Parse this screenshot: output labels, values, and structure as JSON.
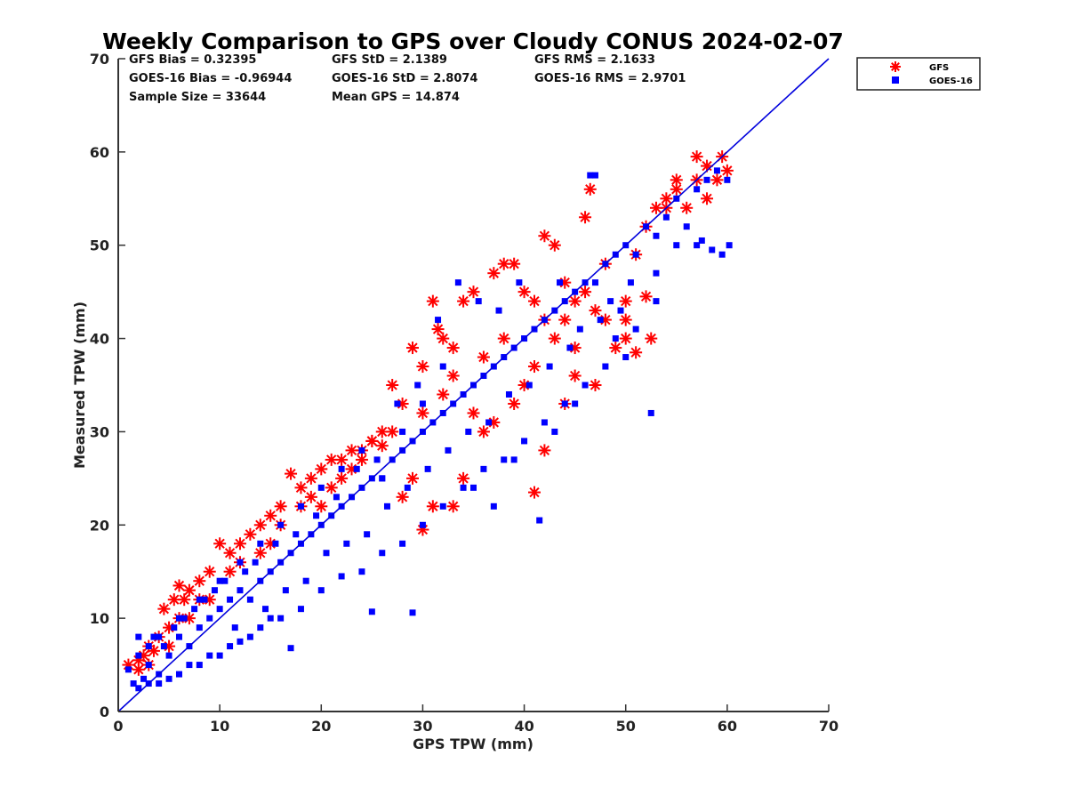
{
  "chart_data": {
    "type": "scatter",
    "title": "Weekly Comparison to GPS over Cloudy CONUS 2024-02-07",
    "xlabel": "GPS TPW (mm)",
    "ylabel": "Measured TPW (mm)",
    "xlim": [
      0,
      70
    ],
    "ylim": [
      0,
      70
    ],
    "x_ticks": [
      "0",
      "10",
      "20",
      "30",
      "40",
      "50",
      "60",
      "70"
    ],
    "y_ticks": [
      "0",
      "10",
      "20",
      "30",
      "40",
      "50",
      "60",
      "70"
    ],
    "grid": false,
    "legend_position": "outside top-right",
    "stats": [
      [
        "GFS Bias = 0.32395",
        "GFS StD = 2.1389",
        "GFS RMS = 2.1633"
      ],
      [
        "GOES-16 Bias = -0.96944",
        "GOES-16 StD = 2.8074",
        "GOES-16 RMS = 2.9701"
      ],
      [
        "Sample Size = 33644",
        "Mean GPS = 14.874"
      ]
    ],
    "reference_line": {
      "from": [
        0,
        0
      ],
      "to": [
        70,
        70
      ],
      "color": "#0000dd"
    },
    "series": [
      {
        "name": "GFS",
        "marker": "asterisk",
        "color": "#ff0000",
        "points": [
          [
            1,
            5
          ],
          [
            2,
            4.5
          ],
          [
            2.5,
            6
          ],
          [
            3,
            7
          ],
          [
            3.5,
            6.5
          ],
          [
            4,
            8
          ],
          [
            4.5,
            11
          ],
          [
            5,
            9
          ],
          [
            5.5,
            12
          ],
          [
            6,
            13.5
          ],
          [
            6.5,
            12
          ],
          [
            7,
            13
          ],
          [
            8,
            14
          ],
          [
            9,
            15
          ],
          [
            10,
            18
          ],
          [
            11,
            17
          ],
          [
            12,
            18
          ],
          [
            13,
            19
          ],
          [
            14,
            20
          ],
          [
            15,
            21
          ],
          [
            16,
            22
          ],
          [
            17,
            25.5
          ],
          [
            18,
            24
          ],
          [
            19,
            25
          ],
          [
            20,
            26
          ],
          [
            21,
            27
          ],
          [
            22,
            27
          ],
          [
            23,
            28
          ],
          [
            24,
            28
          ],
          [
            25,
            29
          ],
          [
            26,
            28.5
          ],
          [
            27,
            35
          ],
          [
            28,
            33
          ],
          [
            29,
            39
          ],
          [
            30,
            37
          ],
          [
            31,
            44
          ],
          [
            31.5,
            41
          ],
          [
            32,
            40
          ],
          [
            33,
            39
          ],
          [
            34,
            44
          ],
          [
            35,
            45
          ],
          [
            36,
            38
          ],
          [
            37,
            47
          ],
          [
            38,
            48
          ],
          [
            39,
            48
          ],
          [
            40,
            45
          ],
          [
            41,
            44
          ],
          [
            42,
            51
          ],
          [
            43,
            50
          ],
          [
            44,
            46
          ],
          [
            45,
            44
          ],
          [
            46,
            53
          ],
          [
            46.5,
            56
          ],
          [
            47,
            35
          ],
          [
            48,
            48
          ],
          [
            49,
            39
          ],
          [
            50,
            42
          ],
          [
            51,
            38.5
          ],
          [
            52,
            44.5
          ],
          [
            52.5,
            40
          ],
          [
            53,
            54
          ],
          [
            54,
            55
          ],
          [
            55,
            57
          ],
          [
            56,
            54
          ],
          [
            57,
            59.5
          ],
          [
            58,
            55
          ],
          [
            59,
            57
          ],
          [
            59.5,
            59.5
          ],
          [
            60,
            58
          ],
          [
            30,
            19.5
          ],
          [
            31,
            22
          ],
          [
            33,
            22
          ],
          [
            34,
            25
          ],
          [
            41,
            23.5
          ],
          [
            42,
            28
          ],
          [
            44,
            33
          ],
          [
            45,
            36
          ],
          [
            38,
            40
          ],
          [
            36,
            30
          ],
          [
            35,
            32
          ],
          [
            28,
            23
          ],
          [
            29,
            25
          ],
          [
            26,
            30
          ],
          [
            25,
            29
          ],
          [
            24,
            27
          ],
          [
            22,
            25
          ],
          [
            21,
            24
          ],
          [
            20,
            22
          ],
          [
            19,
            23
          ],
          [
            15,
            18
          ],
          [
            12,
            16
          ],
          [
            8,
            12
          ],
          [
            7,
            10
          ],
          [
            40,
            35
          ],
          [
            43,
            40
          ],
          [
            44,
            42
          ],
          [
            47,
            43
          ],
          [
            48,
            42
          ],
          [
            50,
            44
          ],
          [
            51,
            49
          ],
          [
            52,
            52
          ],
          [
            55,
            56
          ],
          [
            54,
            54
          ],
          [
            57,
            57
          ],
          [
            58,
            58.5
          ],
          [
            50,
            40
          ],
          [
            45,
            39
          ],
          [
            33,
            36
          ],
          [
            32,
            34
          ],
          [
            37,
            31
          ],
          [
            39,
            33
          ],
          [
            41,
            37
          ],
          [
            42,
            42
          ],
          [
            46,
            45
          ],
          [
            30,
            32
          ],
          [
            27,
            30
          ],
          [
            23,
            26
          ],
          [
            18,
            22
          ],
          [
            16,
            20
          ],
          [
            14,
            17
          ],
          [
            11,
            15
          ],
          [
            9,
            12
          ],
          [
            6,
            10
          ],
          [
            5,
            7
          ],
          [
            3,
            5
          ],
          [
            2,
            5.5
          ]
        ]
      },
      {
        "name": "GOES-16",
        "marker": "square",
        "color": "#0000ff",
        "points": [
          [
            1,
            4.5
          ],
          [
            1.5,
            3
          ],
          [
            2,
            6
          ],
          [
            2.5,
            3.5
          ],
          [
            3,
            5
          ],
          [
            3.5,
            8
          ],
          [
            4,
            4
          ],
          [
            4.5,
            7
          ],
          [
            5,
            6
          ],
          [
            5.5,
            9
          ],
          [
            6,
            8
          ],
          [
            6.5,
            10
          ],
          [
            7,
            7
          ],
          [
            7.5,
            11
          ],
          [
            8,
            9
          ],
          [
            8.5,
            12
          ],
          [
            9,
            10
          ],
          [
            9.5,
            13
          ],
          [
            10,
            11
          ],
          [
            10.5,
            14
          ],
          [
            11,
            12
          ],
          [
            11.5,
            9
          ],
          [
            12,
            13
          ],
          [
            12.5,
            15
          ],
          [
            13,
            12
          ],
          [
            13.5,
            16
          ],
          [
            14,
            14
          ],
          [
            14.5,
            11
          ],
          [
            15,
            15
          ],
          [
            15.5,
            18
          ],
          [
            16,
            16
          ],
          [
            16.5,
            13
          ],
          [
            17,
            17
          ],
          [
            17.5,
            19
          ],
          [
            18,
            18
          ],
          [
            18.5,
            14
          ],
          [
            19,
            19
          ],
          [
            19.5,
            21
          ],
          [
            20,
            20
          ],
          [
            20.5,
            17
          ],
          [
            21,
            21
          ],
          [
            21.5,
            23
          ],
          [
            22,
            22
          ],
          [
            22.5,
            18
          ],
          [
            23,
            23
          ],
          [
            23.5,
            26
          ],
          [
            24,
            24
          ],
          [
            24.5,
            19
          ],
          [
            25,
            25
          ],
          [
            25.5,
            27
          ],
          [
            26,
            25
          ],
          [
            26.5,
            22
          ],
          [
            27,
            27
          ],
          [
            27.5,
            33
          ],
          [
            28,
            28
          ],
          [
            28.5,
            24
          ],
          [
            29,
            29
          ],
          [
            29.5,
            35
          ],
          [
            30,
            30
          ],
          [
            30.5,
            26
          ],
          [
            31,
            31
          ],
          [
            31.5,
            42
          ],
          [
            32,
            32
          ],
          [
            32.5,
            28
          ],
          [
            33,
            33
          ],
          [
            33.5,
            46
          ],
          [
            34,
            34
          ],
          [
            34.5,
            30
          ],
          [
            35,
            35
          ],
          [
            35.5,
            44
          ],
          [
            36,
            36
          ],
          [
            36.5,
            31
          ],
          [
            37,
            37
          ],
          [
            37.5,
            43
          ],
          [
            38,
            38
          ],
          [
            38.5,
            34
          ],
          [
            39,
            39
          ],
          [
            39.5,
            46
          ],
          [
            40,
            40
          ],
          [
            40.5,
            35
          ],
          [
            41,
            41
          ],
          [
            41.5,
            20.5
          ],
          [
            42,
            42
          ],
          [
            42.5,
            37
          ],
          [
            43,
            43
          ],
          [
            43.5,
            46
          ],
          [
            44,
            44
          ],
          [
            44.5,
            39
          ],
          [
            45,
            45
          ],
          [
            45.5,
            41
          ],
          [
            46,
            46
          ],
          [
            46.5,
            57.5
          ],
          [
            47,
            46
          ],
          [
            47.5,
            42
          ],
          [
            48,
            48
          ],
          [
            48.5,
            44
          ],
          [
            49,
            49
          ],
          [
            49.5,
            43
          ],
          [
            50,
            50
          ],
          [
            50.5,
            46
          ],
          [
            51,
            49
          ],
          [
            52,
            52
          ],
          [
            52.5,
            32
          ],
          [
            53,
            51
          ],
          [
            54,
            53
          ],
          [
            55,
            55
          ],
          [
            56,
            52
          ],
          [
            57,
            56
          ],
          [
            57.5,
            50.5
          ],
          [
            58,
            57
          ],
          [
            58.5,
            49.5
          ],
          [
            59,
            58
          ],
          [
            59.5,
            49
          ],
          [
            60,
            57
          ],
          [
            60.2,
            50
          ],
          [
            47,
            57.5
          ],
          [
            53,
            44
          ],
          [
            26,
            25
          ],
          [
            29,
            10.6
          ],
          [
            25,
            10.7
          ],
          [
            17,
            6.8
          ],
          [
            15,
            10
          ],
          [
            13,
            8
          ],
          [
            11,
            7
          ],
          [
            9,
            6
          ],
          [
            7,
            5
          ],
          [
            5,
            3.5
          ],
          [
            3,
            3
          ],
          [
            2,
            2.5
          ],
          [
            4,
            3
          ],
          [
            6,
            4
          ],
          [
            8,
            5
          ],
          [
            10,
            6
          ],
          [
            12,
            7.5
          ],
          [
            14,
            9
          ],
          [
            16,
            10
          ],
          [
            18,
            11
          ],
          [
            20,
            13
          ],
          [
            22,
            14.5
          ],
          [
            24,
            15
          ],
          [
            26,
            17
          ],
          [
            28,
            18
          ],
          [
            30,
            20
          ],
          [
            32,
            22
          ],
          [
            34,
            24
          ],
          [
            36,
            26
          ],
          [
            38,
            27
          ],
          [
            40,
            29
          ],
          [
            42,
            31
          ],
          [
            44,
            33
          ],
          [
            46,
            35
          ],
          [
            48,
            37
          ],
          [
            50,
            38
          ],
          [
            35,
            24
          ],
          [
            37,
            22
          ],
          [
            39,
            27
          ],
          [
            43,
            30
          ],
          [
            45,
            33
          ],
          [
            49,
            40
          ],
          [
            51,
            41
          ],
          [
            53,
            47
          ],
          [
            55,
            50
          ],
          [
            57,
            50
          ],
          [
            30,
            33
          ],
          [
            32,
            37
          ],
          [
            28,
            30
          ],
          [
            24,
            28
          ],
          [
            22,
            26
          ],
          [
            20,
            24
          ],
          [
            18,
            22
          ],
          [
            16,
            20
          ],
          [
            14,
            18
          ],
          [
            12,
            16
          ],
          [
            10,
            14
          ],
          [
            8,
            12
          ],
          [
            6,
            10
          ],
          [
            4,
            8
          ],
          [
            3,
            7
          ],
          [
            2,
            8
          ]
        ]
      }
    ]
  }
}
